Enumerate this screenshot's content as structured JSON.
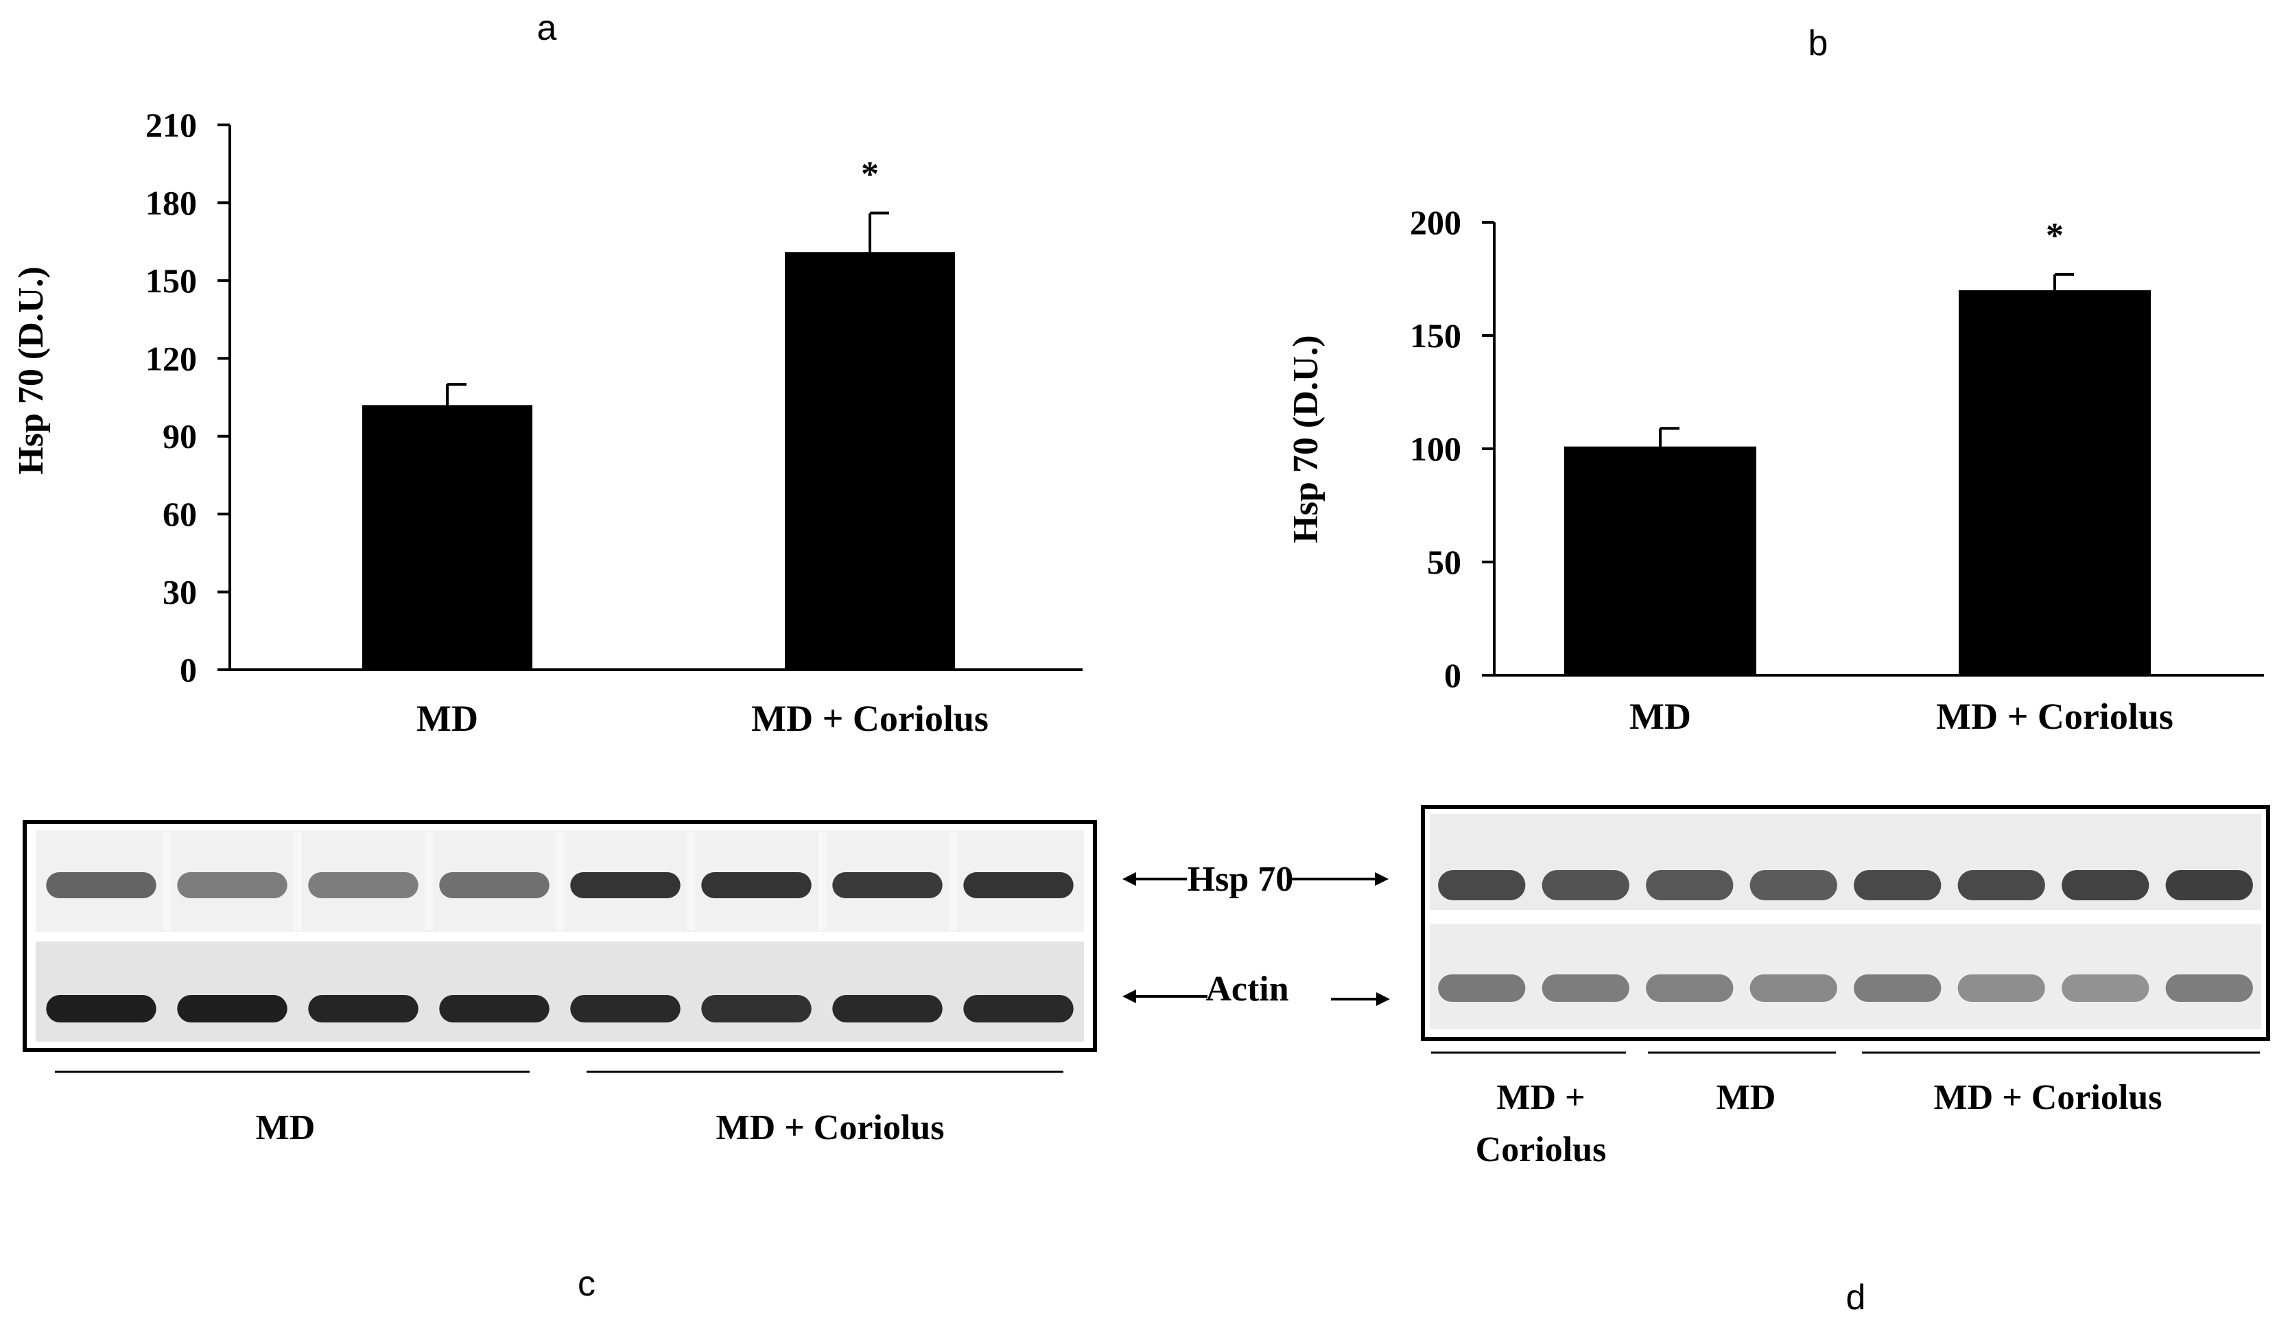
{
  "panels": {
    "a": "a",
    "b": "b",
    "c": "c",
    "d": "d"
  },
  "chart_data": [
    {
      "id": "a",
      "type": "bar",
      "categories": [
        "MD",
        "MD + Coriolus"
      ],
      "values": [
        102,
        161
      ],
      "errors": [
        8,
        15
      ],
      "significance": [
        "",
        "*"
      ],
      "ylabel": "Hsp 70  (D.U.)",
      "ylim": [
        0,
        210
      ],
      "yticks": [
        0,
        30,
        60,
        90,
        120,
        150,
        180,
        210
      ],
      "grid": false,
      "bar_color": "#000000"
    },
    {
      "id": "b",
      "type": "bar",
      "categories": [
        "MD",
        "MD + Coriolus"
      ],
      "values": [
        101,
        170
      ],
      "errors": [
        8,
        7
      ],
      "significance": [
        "",
        "*"
      ],
      "ylabel": "Hsp 70  (D.U.)",
      "ylim": [
        0,
        200
      ],
      "yticks": [
        0,
        50,
        100,
        150,
        200
      ],
      "grid": false,
      "bar_color": "#000000"
    }
  ],
  "blot_c": {
    "labels": {
      "hsp": "Hsp 70",
      "actin": "Actin"
    },
    "groups": [
      "MD",
      "MD + Coriolus"
    ],
    "hsp_intensity": [
      0.62,
      0.5,
      0.5,
      0.56,
      0.85,
      0.85,
      0.82,
      0.85
    ],
    "actin_intensity": [
      0.95,
      0.95,
      0.92,
      0.92,
      0.9,
      0.86,
      0.9,
      0.9
    ]
  },
  "blot_d": {
    "groups": [
      "MD +\nCoriolus",
      "MD",
      "MD + Coriolus"
    ],
    "group_lines": [
      "MD +",
      "Coriolus"
    ],
    "hsp_intensity": [
      0.75,
      0.7,
      0.68,
      0.66,
      0.75,
      0.75,
      0.78,
      0.8
    ],
    "actin_intensity": [
      0.52,
      0.5,
      0.48,
      0.45,
      0.5,
      0.42,
      0.4,
      0.5
    ]
  }
}
